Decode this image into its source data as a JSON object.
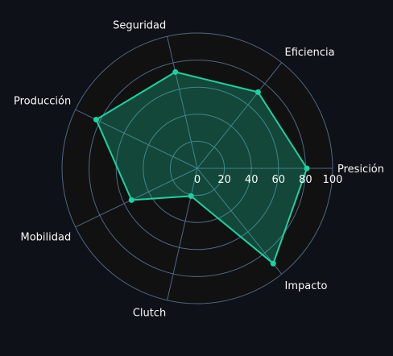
{
  "colors": {
    "page_background": "#0e1117",
    "plot_background": "#111111",
    "grid": "#506784",
    "series_line": "#19d3a2",
    "series_fill": "rgba(25, 211, 162, 0.28)",
    "text": "#fafafa"
  },
  "chart_data": {
    "type": "radar",
    "title": "",
    "categories": [
      "Presición",
      "Eficiencia",
      "Seguridad",
      "Producción",
      "Mobilidad",
      "Clutch",
      "Impacto"
    ],
    "radial_ticks": [
      "0",
      "20",
      "40",
      "60",
      "80",
      "100"
    ],
    "radial_range": [
      0,
      100
    ],
    "grid": true,
    "legend": "none",
    "series": [
      {
        "values": [
          81,
          72,
          73,
          83,
          54,
          21,
          90
        ]
      }
    ]
  }
}
